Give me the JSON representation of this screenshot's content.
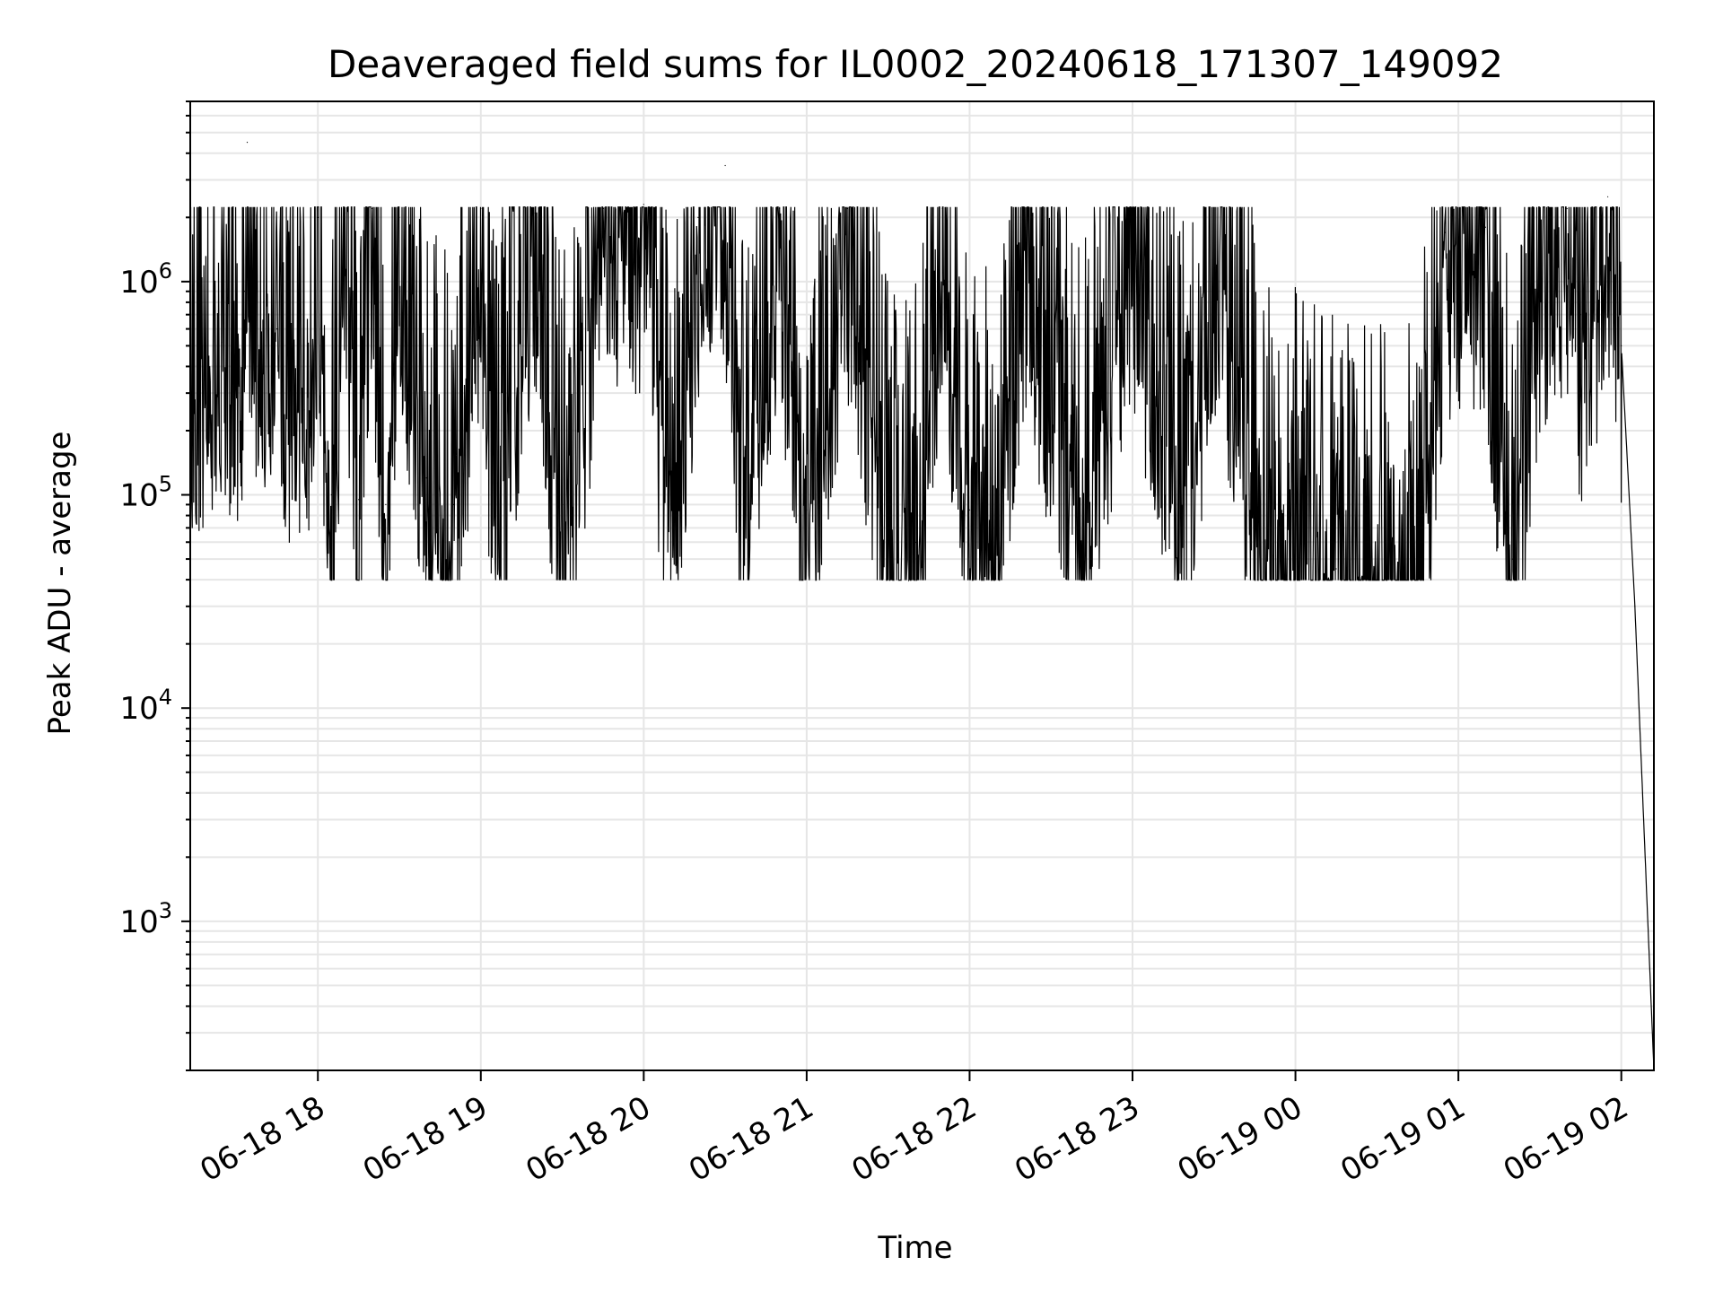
{
  "chart_data": {
    "type": "line",
    "title": "Deaveraged field sums for IL0002_20240618_171307_149092",
    "xlabel": "Time",
    "ylabel": "Peak ADU - average",
    "yscale": "log",
    "grid": true,
    "x_range": [
      "2024-06-18 17:13",
      "2024-06-19 02:12"
    ],
    "ylim": [
      200,
      7000000
    ],
    "x_ticks": [
      "06-18 18",
      "06-18 19",
      "06-18 20",
      "06-18 21",
      "06-18 22",
      "06-18 23",
      "06-19 00",
      "06-19 01",
      "06-19 02"
    ],
    "y_ticks": [
      {
        "base": "10",
        "exp": "3",
        "value": 1000
      },
      {
        "base": "10",
        "exp": "4",
        "value": 10000
      },
      {
        "base": "10",
        "exp": "5",
        "value": 100000
      },
      {
        "base": "10",
        "exp": "6",
        "value": 1000000
      }
    ],
    "series": [
      {
        "color": "#000000",
        "points": [
          [
            "2024-06-18 17:13",
            450000
          ],
          [
            "2024-06-18 17:18",
            560000
          ],
          [
            "2024-06-18 17:25",
            520000
          ],
          [
            "2024-06-18 17:30",
            480000
          ],
          [
            "2024-06-18 17:33",
            900000
          ],
          [
            "2024-06-18 17:34",
            4500000
          ],
          [
            "2024-06-18 17:35",
            1000000
          ],
          [
            "2024-06-18 17:40",
            800000
          ],
          [
            "2024-06-18 17:45",
            600000
          ],
          [
            "2024-06-18 17:50",
            400000
          ],
          [
            "2024-06-18 17:55",
            250000
          ],
          [
            "2024-06-18 18:00",
            2000000
          ],
          [
            "2024-06-18 18:05",
            100000
          ],
          [
            "2024-06-18 18:10",
            2100000
          ],
          [
            "2024-06-18 18:15",
            95000
          ],
          [
            "2024-06-18 18:20",
            2200000
          ],
          [
            "2024-06-18 18:25",
            90000
          ],
          [
            "2024-06-18 18:30",
            2000000
          ],
          [
            "2024-06-18 18:40",
            120000
          ],
          [
            "2024-06-18 18:50",
            90000
          ],
          [
            "2024-06-18 19:00",
            2200000
          ],
          [
            "2024-06-18 19:05",
            85000
          ],
          [
            "2024-06-18 19:20",
            2100000
          ],
          [
            "2024-06-18 19:30",
            90000
          ],
          [
            "2024-06-18 19:45",
            2200000
          ],
          [
            "2024-06-18 20:00",
            2300000
          ],
          [
            "2024-06-18 20:10",
            95000
          ],
          [
            "2024-06-18 20:20",
            2000000
          ],
          [
            "2024-06-18 20:30",
            3500000
          ],
          [
            "2024-06-18 20:35",
            90000
          ],
          [
            "2024-06-18 20:50",
            2200000
          ],
          [
            "2024-06-18 21:00",
            85000
          ],
          [
            "2024-06-18 21:15",
            2200000
          ],
          [
            "2024-06-18 21:30",
            90000
          ],
          [
            "2024-06-18 21:40",
            60000
          ],
          [
            "2024-06-18 21:50",
            2200000
          ],
          [
            "2024-06-18 22:00",
            85000
          ],
          [
            "2024-06-18 22:10",
            90000
          ],
          [
            "2024-06-18 22:20",
            1900000
          ],
          [
            "2024-06-18 22:40",
            120000
          ],
          [
            "2024-06-18 23:00",
            1800000
          ],
          [
            "2024-06-18 23:20",
            100000
          ],
          [
            "2024-06-18 23:30",
            1900000
          ],
          [
            "2024-06-18 23:50",
            70000
          ],
          [
            "2024-06-19 00:00",
            60000
          ],
          [
            "2024-06-19 00:15",
            45000
          ],
          [
            "2024-06-19 00:30",
            40000
          ],
          [
            "2024-06-19 00:45",
            45000
          ],
          [
            "2024-06-19 00:55",
            1700000
          ],
          [
            "2024-06-19 01:10",
            1800000
          ],
          [
            "2024-06-19 01:20",
            50000
          ],
          [
            "2024-06-19 01:30",
            1500000
          ],
          [
            "2024-06-19 01:40",
            2200000
          ],
          [
            "2024-06-19 01:45",
            700000
          ],
          [
            "2024-06-19 01:50",
            1000000
          ],
          [
            "2024-06-19 01:55",
            2500000
          ],
          [
            "2024-06-19 02:00",
            500000
          ],
          [
            "2024-06-19 02:05",
            30000
          ],
          [
            "2024-06-19 02:12",
            200
          ]
        ]
      }
    ]
  }
}
